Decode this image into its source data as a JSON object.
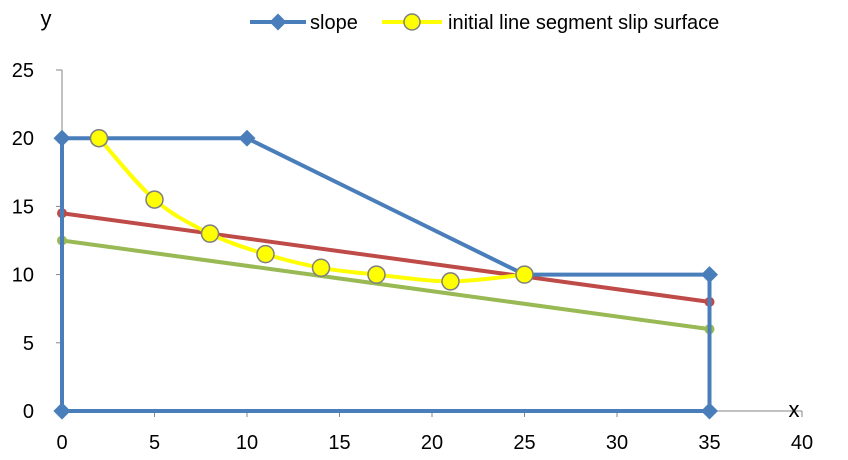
{
  "chart_data": {
    "type": "scatter",
    "xlabel": "x",
    "ylabel": "y",
    "xlim": [
      0,
      40
    ],
    "ylim": [
      0,
      25
    ],
    "xticks": [
      0,
      5,
      10,
      15,
      20,
      25,
      30,
      35,
      40
    ],
    "yticks": [
      0,
      5,
      10,
      15,
      20,
      25
    ],
    "grid": false,
    "legend_position": "top",
    "series": [
      {
        "name": "slope",
        "color": "#4a7ebb",
        "marker": "diamond",
        "points": [
          [
            0,
            0
          ],
          [
            0,
            20
          ],
          [
            10,
            20
          ],
          [
            25,
            10
          ],
          [
            35,
            10
          ],
          [
            35,
            0
          ],
          [
            0,
            0
          ]
        ]
      },
      {
        "name": "initial line segment slip surface",
        "color": "#ffff00",
        "marker_border": "#7f7f7f",
        "marker": "circle",
        "smooth": true,
        "points": [
          [
            2,
            20
          ],
          [
            5,
            15.5
          ],
          [
            8,
            13
          ],
          [
            11,
            11.5
          ],
          [
            14,
            10.5
          ],
          [
            17,
            10
          ],
          [
            21,
            9.5
          ],
          [
            25,
            10
          ]
        ]
      },
      {
        "color": "#be4b48",
        "marker": "dot",
        "points": [
          [
            0,
            14.5
          ],
          [
            35,
            8
          ]
        ]
      },
      {
        "color": "#98b954",
        "marker": "dot",
        "points": [
          [
            0,
            12.5
          ],
          [
            35,
            6
          ]
        ]
      }
    ]
  }
}
